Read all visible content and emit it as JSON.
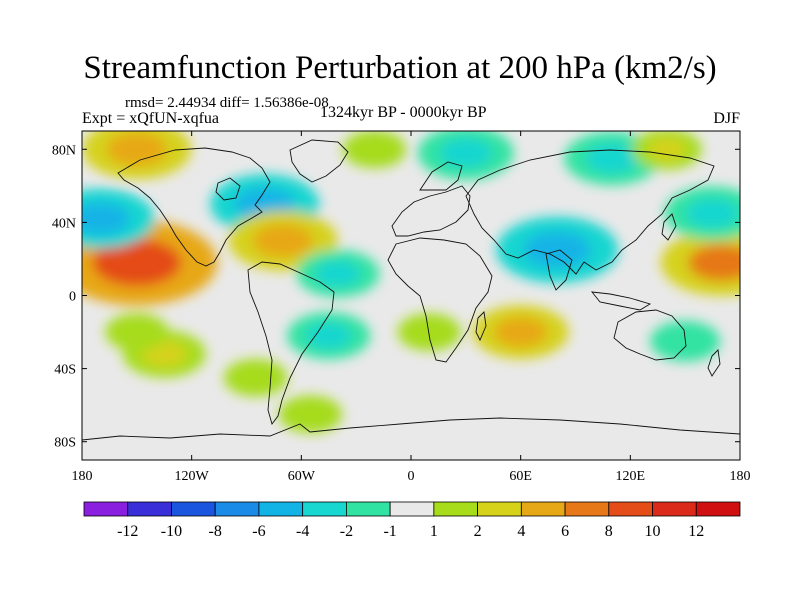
{
  "title": "Streamfunction Perturbation at 200 hPa (km2/s)",
  "stats": "rmsd= 2.44934 diff= 1.56386e-08",
  "experiment": "Expt = xQfUN-xqfua",
  "period": "1324kyr BP - 0000kyr BP",
  "season": "DJF",
  "chart_data": {
    "type": "heatmap",
    "title": "Streamfunction Perturbation at 200 hPa (km2/s)",
    "x_ticks": [
      "180",
      "120W",
      "60W",
      "0",
      "60E",
      "120E",
      "180"
    ],
    "y_ticks": [
      "80N",
      "40N",
      "0",
      "40S",
      "80S"
    ],
    "xlim": [
      -180,
      180
    ],
    "ylim": [
      -90,
      90
    ],
    "colorbar": {
      "labels": [
        "-12",
        "-10",
        "-8",
        "-6",
        "-4",
        "-2",
        "-1",
        "1",
        "2",
        "4",
        "6",
        "8",
        "10",
        "12"
      ],
      "colors": [
        "#8a1fe0",
        "#3a2ed8",
        "#1a55e0",
        "#1a8be6",
        "#12b4e6",
        "#18d6d0",
        "#30e3a2",
        "#e9e9e9",
        "#a6dc1a",
        "#d6d21a",
        "#e7a818",
        "#e67818",
        "#e44c18",
        "#dc2a1a",
        "#d01010"
      ]
    },
    "features": [
      {
        "lon": -150,
        "lat": 18,
        "value": 9
      },
      {
        "lon": -170,
        "lat": 42,
        "value": -5
      },
      {
        "lon": -150,
        "lat": 80,
        "value": 5
      },
      {
        "lon": -80,
        "lat": 50,
        "value": -5
      },
      {
        "lon": -20,
        "lat": 80,
        "value": 1.5
      },
      {
        "lon": -70,
        "lat": 30,
        "value": 5
      },
      {
        "lon": -40,
        "lat": 12,
        "value": -3
      },
      {
        "lon": -45,
        "lat": -22,
        "value": -3
      },
      {
        "lon": -135,
        "lat": -32,
        "value": 3
      },
      {
        "lon": -150,
        "lat": -20,
        "value": 1.5
      },
      {
        "lon": -85,
        "lat": -45,
        "value": 1.5
      },
      {
        "lon": -55,
        "lat": -65,
        "value": 1.5
      },
      {
        "lon": 30,
        "lat": 78,
        "value": -4
      },
      {
        "lon": 110,
        "lat": 75,
        "value": -4
      },
      {
        "lon": 80,
        "lat": 25,
        "value": -6
      },
      {
        "lon": 60,
        "lat": -20,
        "value": 4
      },
      {
        "lon": 10,
        "lat": -20,
        "value": 1.5
      },
      {
        "lon": 140,
        "lat": 80,
        "value": 2
      },
      {
        "lon": 170,
        "lat": 18,
        "value": 6
      },
      {
        "lon": 165,
        "lat": 45,
        "value": -4
      },
      {
        "lon": 150,
        "lat": -25,
        "value": -2
      }
    ]
  }
}
